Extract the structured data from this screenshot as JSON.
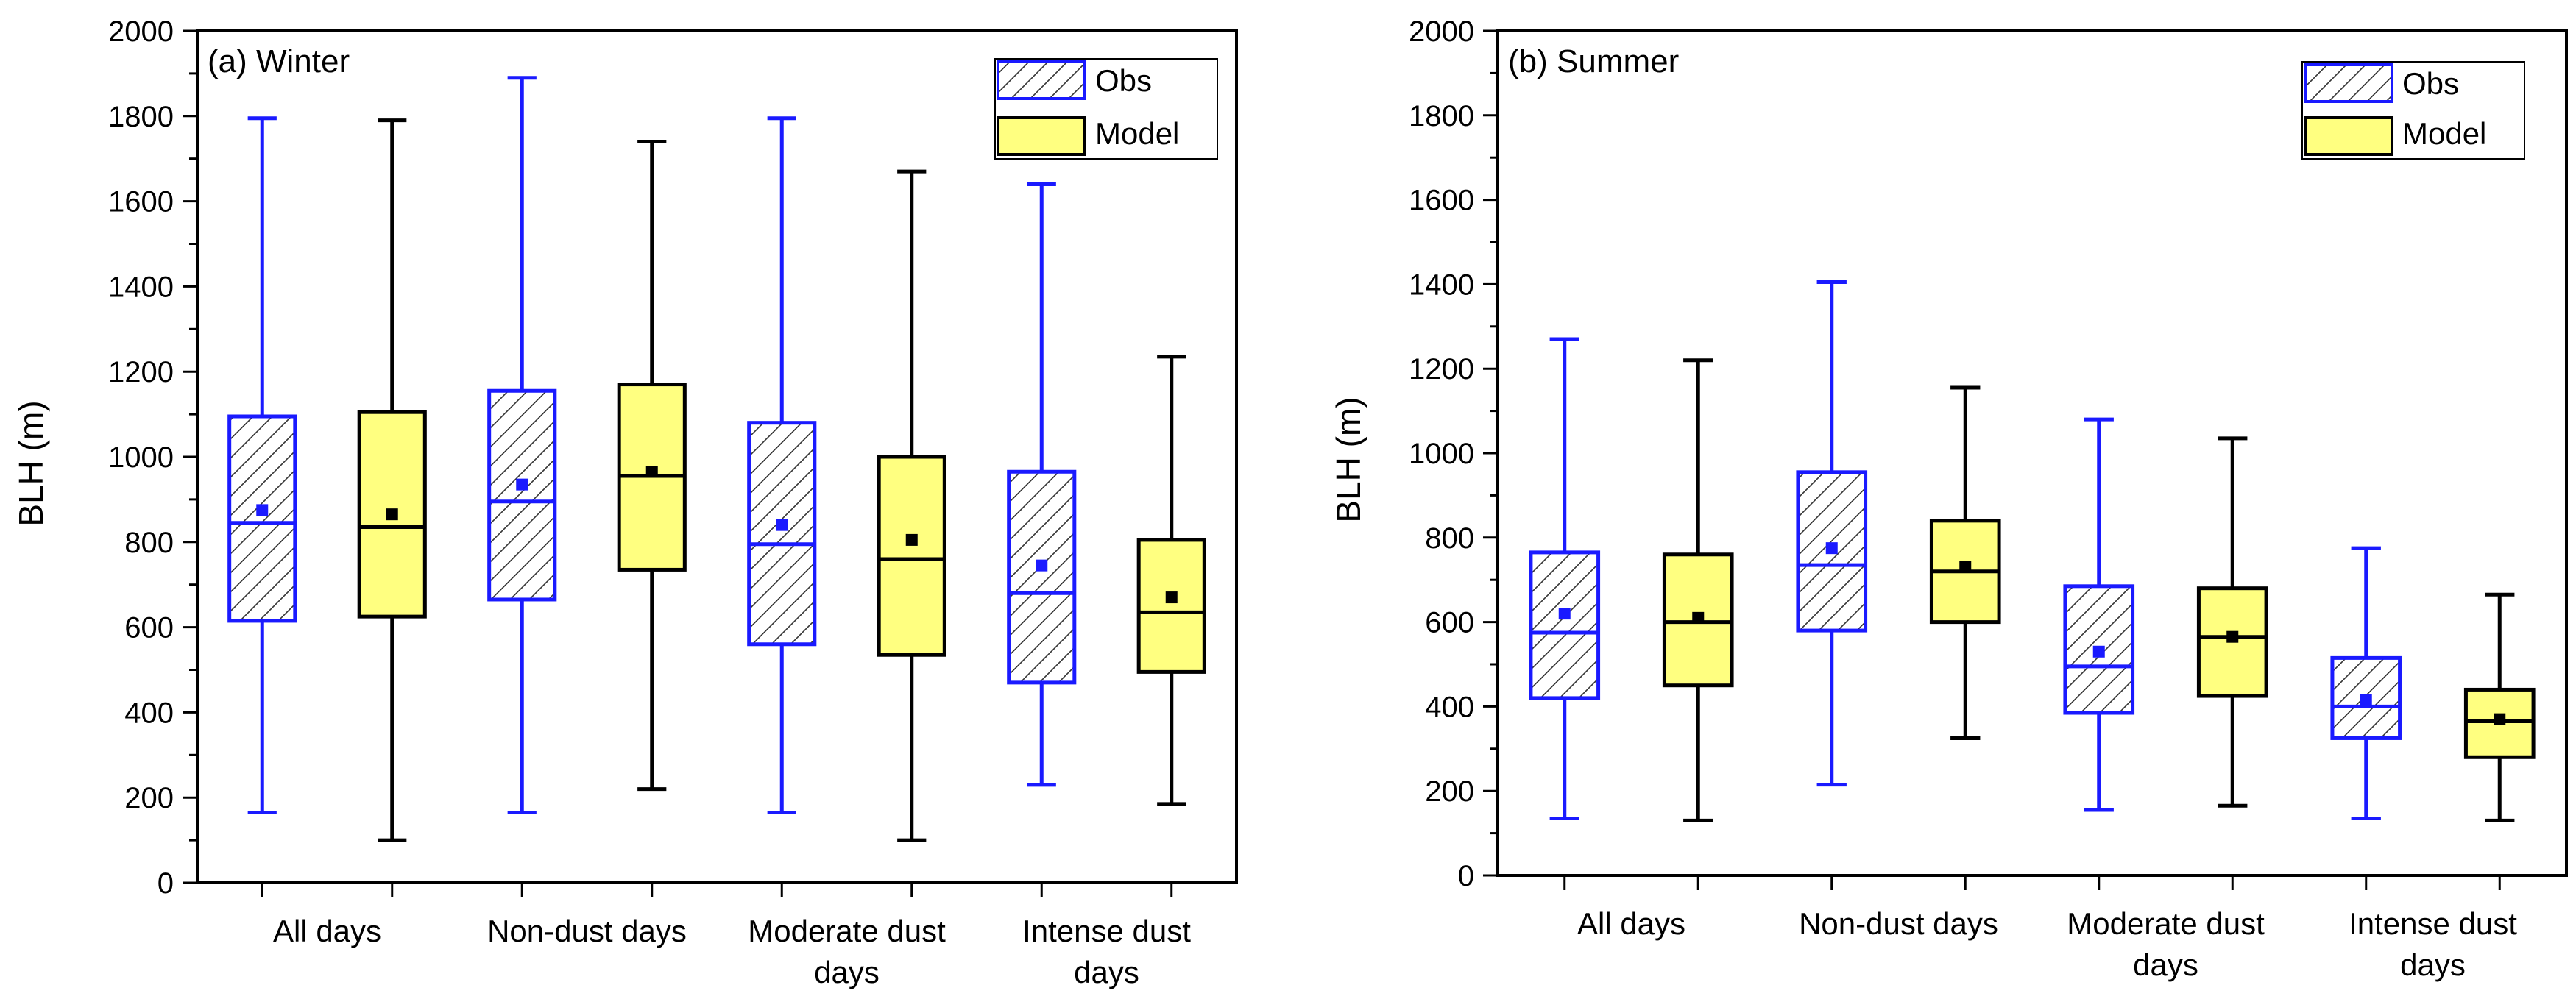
{
  "colors": {
    "obs": "#1a1aff",
    "model_fill": "#ffff80",
    "black": "#000000"
  },
  "chart_data": [
    {
      "type": "box",
      "panel_label": "(a) Winter",
      "ylabel": "BLH (m)",
      "ylim": [
        0,
        2000
      ],
      "yticks": [
        "0",
        "200",
        "400",
        "600",
        "800",
        "1000",
        "1200",
        "1400",
        "1600",
        "1800",
        "2000"
      ],
      "category_labels": [
        [
          "All days"
        ],
        [
          "Non-dust days"
        ],
        [
          "Moderate dust",
          "days"
        ],
        [
          "Intense dust",
          "days"
        ]
      ],
      "legend": {
        "obs": "Obs",
        "model": "Model"
      },
      "series": [
        {
          "name": "Obs",
          "boxes": [
            {
              "min": 165,
              "q1": 615,
              "median": 845,
              "q3": 1095,
              "max": 1795,
              "mean": 875
            },
            {
              "min": 165,
              "q1": 665,
              "median": 895,
              "q3": 1155,
              "max": 1890,
              "mean": 935
            },
            {
              "min": 165,
              "q1": 560,
              "median": 795,
              "q3": 1080,
              "max": 1795,
              "mean": 840
            },
            {
              "min": 230,
              "q1": 470,
              "median": 680,
              "q3": 965,
              "max": 1640,
              "mean": 745
            }
          ]
        },
        {
          "name": "Model",
          "boxes": [
            {
              "min": 100,
              "q1": 625,
              "median": 835,
              "q3": 1105,
              "max": 1790,
              "mean": 865
            },
            {
              "min": 220,
              "q1": 735,
              "median": 955,
              "q3": 1170,
              "max": 1740,
              "mean": 965
            },
            {
              "min": 100,
              "q1": 535,
              "median": 760,
              "q3": 1000,
              "max": 1670,
              "mean": 805
            },
            {
              "min": 185,
              "q1": 495,
              "median": 635,
              "q3": 805,
              "max": 1235,
              "mean": 670
            }
          ]
        }
      ]
    },
    {
      "type": "box",
      "panel_label": "(b) Summer",
      "ylabel": "BLH (m)",
      "ylim": [
        0,
        2000
      ],
      "yticks": [
        "0",
        "200",
        "400",
        "600",
        "800",
        "1000",
        "1200",
        "1400",
        "1600",
        "1800",
        "2000"
      ],
      "category_labels": [
        [
          "All days"
        ],
        [
          "Non-dust days"
        ],
        [
          "Moderate dust",
          "days"
        ],
        [
          "Intense dust",
          "days"
        ]
      ],
      "legend": {
        "obs": "Obs",
        "model": "Model"
      },
      "series": [
        {
          "name": "Obs",
          "boxes": [
            {
              "min": 135,
              "q1": 420,
              "median": 575,
              "q3": 765,
              "max": 1270,
              "mean": 620
            },
            {
              "min": 215,
              "q1": 580,
              "median": 735,
              "q3": 955,
              "max": 1405,
              "mean": 775
            },
            {
              "min": 155,
              "q1": 385,
              "median": 495,
              "q3": 685,
              "max": 1080,
              "mean": 530
            },
            {
              "min": 135,
              "q1": 325,
              "median": 400,
              "q3": 515,
              "max": 775,
              "mean": 415
            }
          ]
        },
        {
          "name": "Model",
          "boxes": [
            {
              "min": 130,
              "q1": 450,
              "median": 600,
              "q3": 760,
              "max": 1220,
              "mean": 610
            },
            {
              "min": 325,
              "q1": 600,
              "median": 720,
              "q3": 840,
              "max": 1155,
              "mean": 730
            },
            {
              "min": 165,
              "q1": 425,
              "median": 565,
              "q3": 680,
              "max": 1035,
              "mean": 565
            },
            {
              "min": 130,
              "q1": 280,
              "median": 365,
              "q3": 440,
              "max": 665,
              "mean": 370
            }
          ]
        }
      ]
    }
  ]
}
